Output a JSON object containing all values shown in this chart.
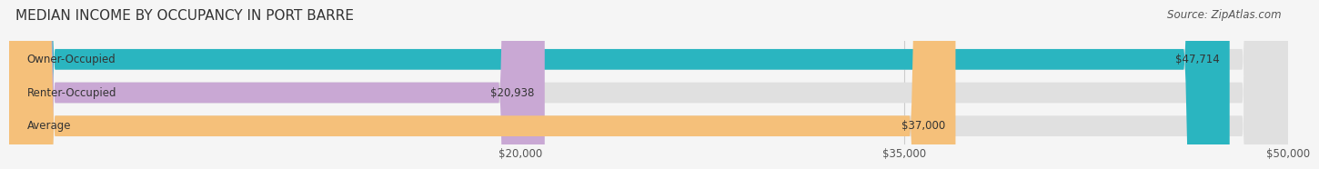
{
  "title": "MEDIAN INCOME BY OCCUPANCY IN PORT BARRE",
  "source": "Source: ZipAtlas.com",
  "categories": [
    "Owner-Occupied",
    "Renter-Occupied",
    "Average"
  ],
  "values": [
    47714,
    20938,
    37000
  ],
  "bar_colors": [
    "#2ab5c0",
    "#c9a8d4",
    "#f5c07a"
  ],
  "bar_labels": [
    "$47,714",
    "$20,938",
    "$37,000"
  ],
  "xlim": [
    0,
    50000
  ],
  "xticks": [
    20000,
    35000,
    50000
  ],
  "xtick_labels": [
    "$20,000",
    "$35,000",
    "$50,000"
  ],
  "background_color": "#f5f5f5",
  "bar_bg_color": "#e0e0e0",
  "title_fontsize": 11,
  "label_fontsize": 8.5,
  "tick_fontsize": 8.5,
  "source_fontsize": 8.5
}
